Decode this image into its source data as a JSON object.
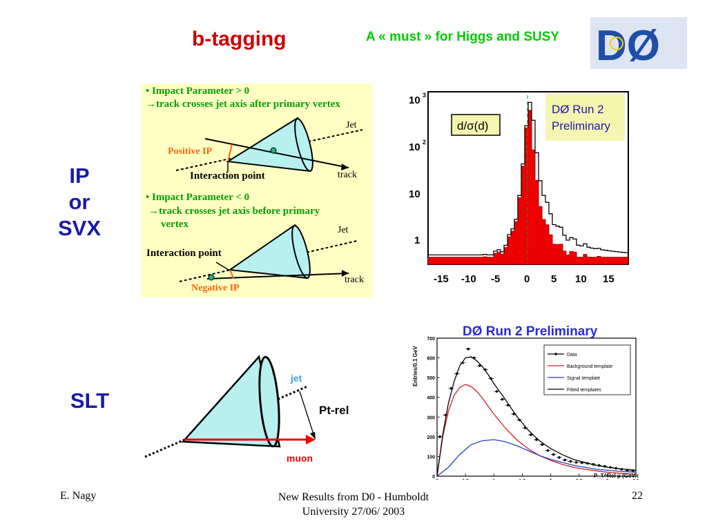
{
  "title": "b-tagging",
  "subtitle": "A « must »  for Higgs and SUSY",
  "logo": {
    "text": "DØ",
    "color": "#1f4ea8",
    "accent": "#f0d000"
  },
  "side_labels": {
    "ip": [
      "IP",
      "or",
      "SVX"
    ],
    "slt": "SLT"
  },
  "ip_panel": {
    "positive": {
      "bullet": "• Impact Parameter > 0",
      "arrow_text": "→track crosses jet axis after primary vertex",
      "jet": "Jet",
      "track": "track",
      "ip_label": "Positive IP",
      "interaction": "Interaction point"
    },
    "negative": {
      "bullet": "• Impact Parameter < 0",
      "arrow_text": "→track crosses jet axis before primary",
      "arrow_text2": "vertex",
      "jet": "Jet",
      "track": "track",
      "ip_label": "Negative IP",
      "interaction": "Interaction point"
    }
  },
  "hist_panel": {
    "legend_line1": "DØ Run 2",
    "legend_line2": "Preliminary",
    "axis_label": "d/σ(d)",
    "y_ticks": [
      "10",
      "10",
      "10",
      "1"
    ],
    "y_exps": [
      "3",
      "2",
      "",
      ""
    ],
    "x_ticks": [
      "-15",
      "-10",
      "-5",
      "0",
      "5",
      "10",
      "15"
    ]
  },
  "slt_diagram": {
    "jet": "jet",
    "ptrel": "Pt-rel",
    "muon": "muon"
  },
  "chart_data": {
    "type": "line",
    "title": "DØ Run 2 Preliminary",
    "xlabel": "P_T^Rel μ (GeV/c)",
    "ylabel": "Entries/0.1 GeV",
    "xlim": [
      0,
      3.5
    ],
    "ylim": [
      0,
      700
    ],
    "x_ticks": [
      "0",
      "0.5",
      "1",
      "1.5",
      "2",
      "2.5",
      "3",
      "3.5"
    ],
    "y_ticks": [
      "0",
      "100",
      "200",
      "300",
      "400",
      "500",
      "600",
      "700"
    ],
    "legend_position": "top-right",
    "series": [
      {
        "name": "Data",
        "color": "#000000",
        "kind": "points",
        "x": [
          0.05,
          0.15,
          0.25,
          0.35,
          0.45,
          0.55,
          0.65,
          0.75,
          0.85,
          0.95,
          1.05,
          1.15,
          1.25,
          1.35,
          1.45,
          1.55,
          1.65,
          1.75,
          1.85,
          1.95,
          2.05,
          2.15,
          2.25,
          2.35,
          2.45,
          2.55,
          2.65,
          2.75,
          2.85,
          2.95,
          3.05,
          3.15,
          3.25,
          3.35,
          3.45
        ],
        "y": [
          200,
          310,
          445,
          520,
          575,
          645,
          600,
          560,
          540,
          495,
          430,
          390,
          360,
          315,
          285,
          245,
          210,
          185,
          160,
          130,
          110,
          95,
          82,
          75,
          70,
          68,
          65,
          60,
          55,
          50,
          45,
          40,
          35,
          30,
          28
        ]
      },
      {
        "name": "Background template",
        "color": "#d02020",
        "x": [
          0,
          0.1,
          0.2,
          0.3,
          0.4,
          0.5,
          0.6,
          0.7,
          0.8,
          0.9,
          1.0,
          1.2,
          1.4,
          1.6,
          1.8,
          2.0,
          2.2,
          2.4,
          2.6,
          2.8,
          3.0,
          3.2,
          3.5
        ],
        "y": [
          0,
          200,
          330,
          410,
          450,
          465,
          455,
          430,
          395,
          355,
          315,
          245,
          185,
          140,
          105,
          80,
          60,
          45,
          35,
          27,
          20,
          15,
          10
        ]
      },
      {
        "name": "Signal template",
        "color": "#2040c0",
        "x": [
          0,
          0.2,
          0.4,
          0.6,
          0.8,
          1.0,
          1.2,
          1.4,
          1.6,
          1.8,
          2.0,
          2.2,
          2.4,
          2.6,
          2.8,
          3.0,
          3.2,
          3.5
        ],
        "y": [
          0,
          45,
          110,
          160,
          180,
          185,
          175,
          155,
          130,
          105,
          85,
          70,
          55,
          45,
          35,
          30,
          25,
          20
        ]
      },
      {
        "name": "Fitted templates",
        "color": "#000000",
        "x": [
          0,
          0.1,
          0.2,
          0.3,
          0.4,
          0.5,
          0.6,
          0.7,
          0.8,
          0.9,
          1.0,
          1.2,
          1.4,
          1.6,
          1.8,
          2.0,
          2.2,
          2.4,
          2.6,
          2.8,
          3.0,
          3.2,
          3.5
        ],
        "y": [
          0,
          210,
          370,
          480,
          560,
          600,
          605,
          585,
          555,
          515,
          470,
          390,
          305,
          235,
          180,
          140,
          110,
          85,
          70,
          55,
          45,
          38,
          30
        ]
      }
    ]
  },
  "footer": {
    "left": "E. Nagy",
    "center_line1": "New Results from D0 - Humboldt",
    "center_line2": "University  27/06/ 2003",
    "right": "22"
  }
}
